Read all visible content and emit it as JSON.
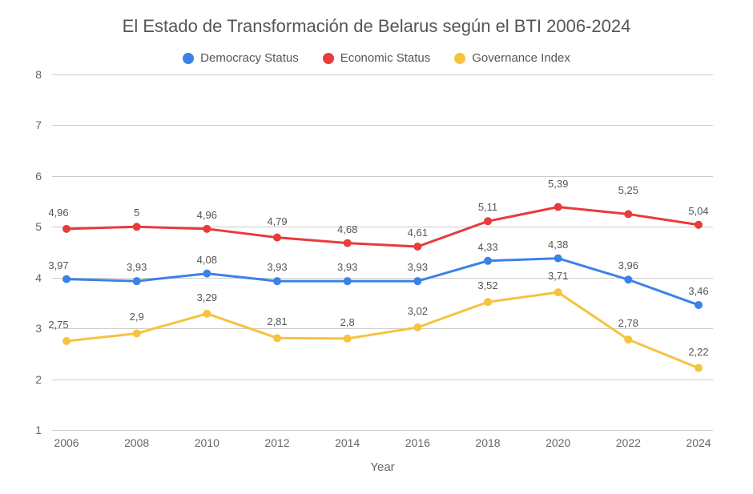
{
  "chart": {
    "title": "El Estado de Transformación de Belarus según el BTI 2006-2024",
    "title_fontsize": 22,
    "xlabel": "Year",
    "ylabel": "",
    "background_color": "#ffffff",
    "grid_color": "#cccccc",
    "text_color": "#555555",
    "ylim": [
      1,
      8
    ],
    "ytick_step": 1,
    "yticks": [
      1,
      2,
      3,
      4,
      5,
      6,
      7,
      8
    ],
    "categories": [
      "2006",
      "2008",
      "2010",
      "2012",
      "2014",
      "2016",
      "2018",
      "2020",
      "2022",
      "2024"
    ],
    "series": [
      {
        "name": "Democracy Status",
        "color": "#3b82e8",
        "values": [
          3.97,
          3.93,
          4.08,
          3.93,
          3.93,
          3.93,
          4.33,
          4.38,
          3.96,
          3.46
        ],
        "labels": [
          "3,97",
          "3,93",
          "4,08",
          "3,93",
          "3,93",
          "3,93",
          "4,33",
          "4,38",
          "3,96",
          "3,46"
        ],
        "label_offsets_y": [
          -10,
          -10,
          -10,
          -10,
          -10,
          -10,
          -10,
          -10,
          -10,
          -10
        ],
        "label_offsets_x": [
          -10,
          0,
          0,
          0,
          0,
          0,
          0,
          0,
          0,
          0
        ]
      },
      {
        "name": "Economic Status",
        "color": "#e83b3b",
        "values": [
          4.96,
          5.0,
          4.96,
          4.79,
          4.68,
          4.61,
          5.11,
          5.39,
          5.25,
          5.04
        ],
        "labels": [
          "4,96",
          "5",
          "4,96",
          "4,79",
          "4,68",
          "4,61",
          "5,11",
          "5,39",
          "5,25",
          "5,04"
        ],
        "label_offsets_y": [
          -13,
          -10,
          -10,
          -13,
          -10,
          -10,
          -10,
          -22,
          -22,
          -10
        ],
        "label_offsets_x": [
          -10,
          0,
          0,
          0,
          0,
          0,
          0,
          0,
          0,
          0
        ]
      },
      {
        "name": "Governance Index",
        "color": "#f5c340",
        "values": [
          2.75,
          2.9,
          3.29,
          2.81,
          2.8,
          3.02,
          3.52,
          3.71,
          2.78,
          2.22
        ],
        "labels": [
          "2,75",
          "2,9",
          "3,29",
          "2,81",
          "2,8",
          "3,02",
          "3,52",
          "3,71",
          "2,78",
          "2,22"
        ],
        "label_offsets_y": [
          -13,
          -13,
          -13,
          -13,
          -13,
          -13,
          -13,
          -13,
          -13,
          -13
        ],
        "label_offsets_x": [
          -10,
          0,
          0,
          0,
          0,
          0,
          0,
          0,
          0,
          0
        ]
      }
    ],
    "line_width": 3,
    "marker_radius": 5,
    "label_fontsize": 13
  }
}
